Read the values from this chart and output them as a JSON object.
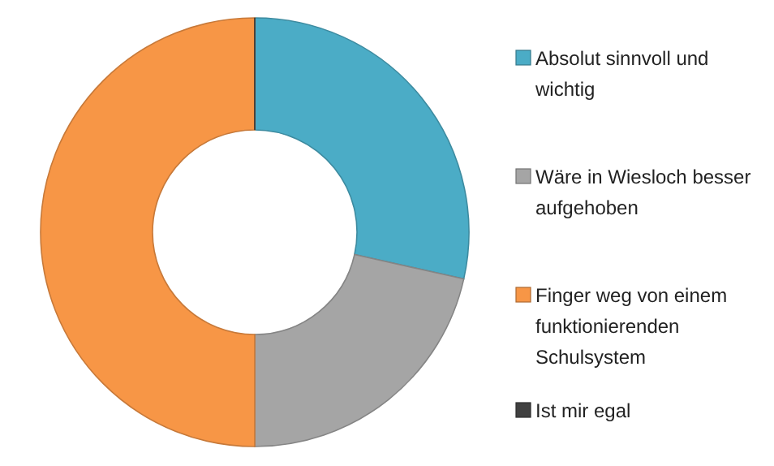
{
  "chart_data": {
    "type": "donut",
    "categories": [
      "Absolut sinnvoll und wichtig",
      "Wäre in Wiesloch besser aufgehoben",
      "Finger weg von einem funktionierenden Schulsystem",
      "Ist mir egal"
    ],
    "values": [
      28.5,
      21.5,
      50,
      0
    ],
    "colors": [
      "#4bacc6",
      "#a5a5a5",
      "#f79646",
      "#404040"
    ],
    "legend": "right"
  }
}
